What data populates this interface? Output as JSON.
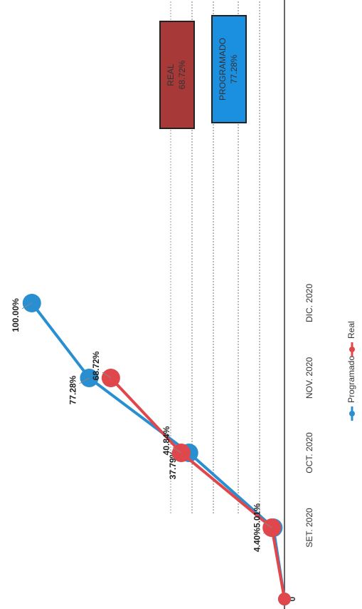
{
  "chart_data": {
    "type": "line",
    "categories": [
      null,
      "SET. 2020",
      "OCT. 2020",
      "NOV. 2020",
      "DIC. 2020"
    ],
    "series": [
      {
        "name": "Programado",
        "color": "#2a8fd0",
        "values": [
          0,
          4.4,
          37.79,
          77.28,
          100.0
        ],
        "value_labels": [
          null,
          "4.40%",
          "37.79%",
          "77.28%",
          "100.00%"
        ]
      },
      {
        "name": "Real",
        "color": "#e0474c",
        "values": [
          0,
          5.01,
          40.84,
          68.72,
          null
        ],
        "value_labels": [
          null,
          "5.01%",
          "40.84%",
          "68.72%",
          null
        ]
      }
    ],
    "ylim": [
      0,
      105
    ],
    "yticks": [
      0
    ],
    "legend": "bottom",
    "summary": [
      {
        "label": "REAL",
        "value": "68.72%",
        "color": "#a73a38"
      },
      {
        "label": "PROGRAMADO",
        "value": "77.28%",
        "color": "#1b8fe0"
      }
    ]
  }
}
